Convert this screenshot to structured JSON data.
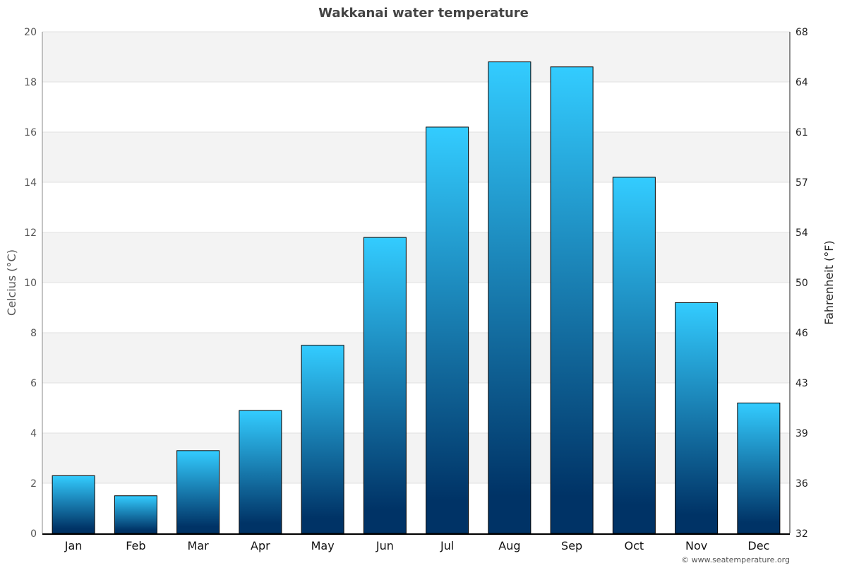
{
  "chart_data": {
    "type": "bar",
    "title": "Wakkanai water temperature",
    "ylabel": "Celcius (°C)",
    "ylabel_right": "Fahrenheit (°F)",
    "categories": [
      "Jan",
      "Feb",
      "Mar",
      "Apr",
      "May",
      "Jun",
      "Jul",
      "Aug",
      "Sep",
      "Oct",
      "Nov",
      "Dec"
    ],
    "values": [
      2.3,
      1.5,
      3.3,
      4.9,
      7.5,
      11.8,
      16.2,
      18.8,
      18.6,
      14.2,
      9.2,
      5.2
    ],
    "ylim": [
      0,
      20
    ],
    "yticks": [
      "0",
      "2",
      "4",
      "6",
      "8",
      "10",
      "12",
      "14",
      "16",
      "18",
      "20"
    ],
    "yticks_right": [
      "32",
      "36",
      "39",
      "43",
      "46",
      "50",
      "54",
      "57",
      "61",
      "64",
      "68"
    ],
    "grid": true,
    "legend": "none",
    "colors": {
      "bar_top": "#33ccff",
      "bar_bottom": "#003366",
      "band": "#f3f3f3"
    }
  },
  "footer": "© www.seatemperature.org"
}
